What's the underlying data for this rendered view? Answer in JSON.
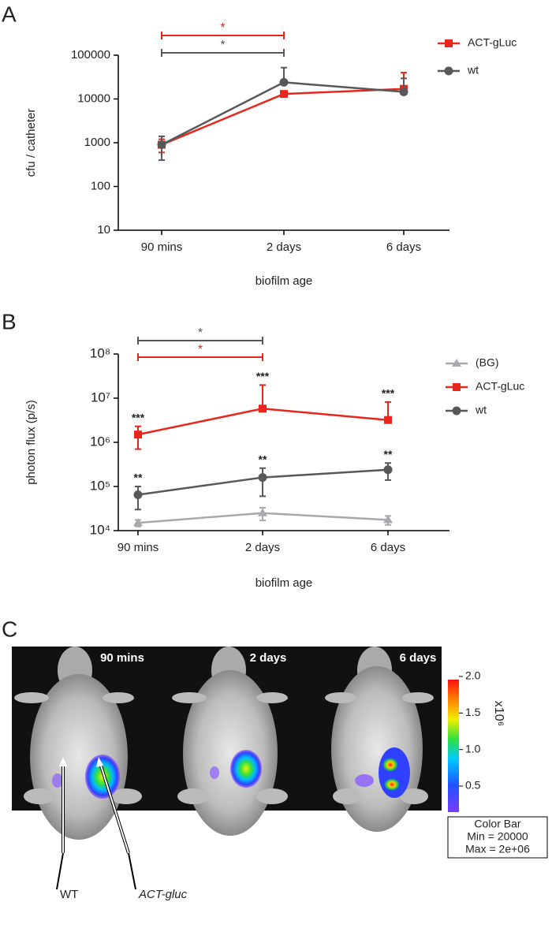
{
  "chart_data": [
    {
      "type": "line",
      "panel": "A",
      "ylabel": "cfu / catheter",
      "xlabel": "biofilm age",
      "log_y": true,
      "ylim": [
        10,
        100000
      ],
      "yticks": [
        10,
        100,
        1000,
        10000,
        100000
      ],
      "categories": [
        "90 mins",
        "2 days",
        "6 days"
      ],
      "series": [
        {
          "name": "ACT-gLuc",
          "color": "#e8261c",
          "marker": "square",
          "values": [
            900,
            13000,
            17000
          ],
          "errors": [
            300,
            1500,
            23000
          ]
        },
        {
          "name": "wt",
          "color": "#58585a",
          "marker": "circle",
          "values": [
            900,
            24000,
            14500
          ],
          "errors": [
            500,
            28000,
            15000
          ]
        }
      ],
      "brackets": [
        {
          "from": 0,
          "to": 1,
          "text": "*",
          "color": "#e8261c"
        },
        {
          "from": 0,
          "to": 1,
          "text": "*",
          "color": "#58585a"
        }
      ]
    },
    {
      "type": "line",
      "panel": "B",
      "ylabel": "photon flux (p/s)",
      "xlabel": "biofilm age",
      "log_y": true,
      "ylim": [
        10000,
        100000000
      ],
      "yticks": [
        {
          "value": 10000,
          "label": "10⁴"
        },
        {
          "value": 100000,
          "label": "10⁵"
        },
        {
          "value": 1000000,
          "label": "10⁶"
        },
        {
          "value": 10000000,
          "label": "10⁷"
        },
        {
          "value": 100000000,
          "label": "10⁸"
        }
      ],
      "categories": [
        "90 mins",
        "2 days",
        "6 days"
      ],
      "series": [
        {
          "name": "(BG)",
          "color": "#a7a9ac",
          "marker": "triangle",
          "values": [
            15000,
            25000,
            17500
          ],
          "errors": [
            2500,
            8000,
            4000
          ]
        },
        {
          "name": "ACT-gLuc",
          "color": "#e8261c",
          "marker": "square",
          "values": [
            1500000,
            5800000,
            3200000
          ],
          "errors": [
            800000,
            14000000,
            5000000
          ],
          "significance": [
            "***",
            "***",
            "***"
          ]
        },
        {
          "name": "wt",
          "color": "#58585a",
          "marker": "circle",
          "values": [
            65000,
            160000,
            240000
          ],
          "errors": [
            35000,
            100000,
            100000
          ],
          "significance": [
            "**",
            "**",
            "**"
          ]
        }
      ],
      "brackets": [
        {
          "from": 0,
          "to": 1,
          "text": "*",
          "color": "#58585a"
        },
        {
          "from": 0,
          "to": 1,
          "text": "*",
          "color": "#e8261c"
        }
      ]
    }
  ],
  "panel_c": {
    "panel": "C",
    "labels": [
      "90 mins",
      "2 days",
      "6 days"
    ],
    "colorbar_ticks": [
      {
        "value": 2.0,
        "label": "2.0"
      },
      {
        "value": 1.5,
        "label": "1.5"
      },
      {
        "value": 1.0,
        "label": "1.0"
      },
      0.5
    ],
    "colorbar_unit": "x10⁶",
    "box": [
      "Color Bar",
      "Min = 20000",
      "Max = 2e+06"
    ],
    "arrows": [
      "WT",
      "ACT-gluc"
    ]
  }
}
